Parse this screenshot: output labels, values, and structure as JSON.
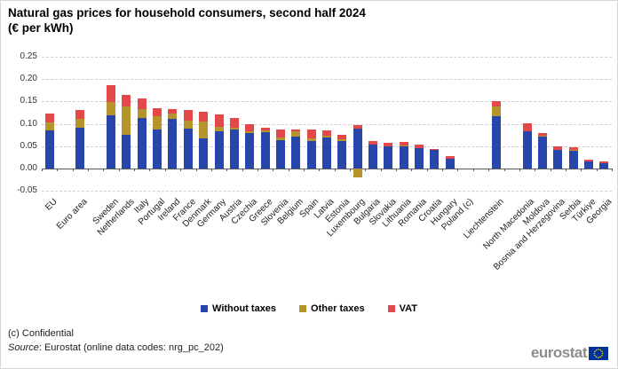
{
  "title": {
    "line1": "Natural gas prices for household consumers, second half 2024",
    "line2": "(€ per kWh)"
  },
  "legend": [
    {
      "label": "Without taxes",
      "color_key": "without_taxes"
    },
    {
      "label": "Other taxes",
      "color_key": "other_taxes"
    },
    {
      "label": "VAT",
      "color_key": "vat"
    }
  ],
  "colors": {
    "without_taxes": "#2846AA",
    "other_taxes": "#B6942C",
    "vat": "#E3484A",
    "grid": "#cfcfcf",
    "axis": "#5a5a5a",
    "logo_blue": "#003399",
    "logo_star": "#FFCC00"
  },
  "footer": {
    "confidential": "(c) Confidential",
    "source_italic": "Source",
    "source_text": ": Eurostat (online data codes: nrg_pc_202)"
  },
  "logo": {
    "text": "eurostat"
  },
  "chart_data": {
    "type": "bar",
    "stacked": true,
    "title": "Natural gas prices for household consumers, second half 2024 (€ per kWh)",
    "xlabel": "",
    "ylabel": "€ per kWh",
    "ylim": [
      -0.05,
      0.25
    ],
    "ytick_step": 0.05,
    "grid": "horizontal-dashed",
    "legend_position": "bottom",
    "series_names": [
      "Without taxes",
      "Other taxes",
      "VAT"
    ],
    "note": "values are stacked segment sizes in € per kWh; null = no data shown (confidential)",
    "entries": [
      {
        "label": "EU",
        "without_taxes": 0.085,
        "other_taxes": 0.018,
        "vat": 0.019,
        "gap_after": true
      },
      {
        "label": "Euro area",
        "without_taxes": 0.091,
        "other_taxes": 0.02,
        "vat": 0.019,
        "gap_after": true
      },
      {
        "label": "Sweden",
        "without_taxes": 0.118,
        "other_taxes": 0.03,
        "vat": 0.039
      },
      {
        "label": "Netherlands",
        "without_taxes": 0.075,
        "other_taxes": 0.063,
        "vat": 0.026
      },
      {
        "label": "Italy",
        "without_taxes": 0.112,
        "other_taxes": 0.02,
        "vat": 0.025
      },
      {
        "label": "Portugal",
        "without_taxes": 0.088,
        "other_taxes": 0.028,
        "vat": 0.018
      },
      {
        "label": "Ireland",
        "without_taxes": 0.11,
        "other_taxes": 0.012,
        "vat": 0.01
      },
      {
        "label": "France",
        "without_taxes": 0.089,
        "other_taxes": 0.018,
        "vat": 0.023
      },
      {
        "label": "Denmark",
        "without_taxes": 0.068,
        "other_taxes": 0.036,
        "vat": 0.022
      },
      {
        "label": "Germany",
        "without_taxes": 0.083,
        "other_taxes": 0.011,
        "vat": 0.026
      },
      {
        "label": "Austria",
        "without_taxes": 0.088,
        "other_taxes": 0.003,
        "vat": 0.021
      },
      {
        "label": "Czechia",
        "without_taxes": 0.08,
        "other_taxes": 0.003,
        "vat": 0.017
      },
      {
        "label": "Greece",
        "without_taxes": 0.082,
        "other_taxes": 0.004,
        "vat": 0.005
      },
      {
        "label": "Slovenia",
        "without_taxes": 0.063,
        "other_taxes": 0.006,
        "vat": 0.018
      },
      {
        "label": "Belgium",
        "without_taxes": 0.071,
        "other_taxes": 0.013,
        "vat": 0.004
      },
      {
        "label": "Spain",
        "without_taxes": 0.062,
        "other_taxes": 0.005,
        "vat": 0.021
      },
      {
        "label": "Latvia",
        "without_taxes": 0.07,
        "other_taxes": 0.004,
        "vat": 0.011
      },
      {
        "label": "Estonia",
        "without_taxes": 0.061,
        "other_taxes": 0.004,
        "vat": 0.01
      },
      {
        "label": "Luxembourg",
        "without_taxes": 0.089,
        "other_taxes": -0.021,
        "vat": 0.008
      },
      {
        "label": "Bulgaria",
        "without_taxes": 0.053,
        "other_taxes": 0,
        "vat": 0.008
      },
      {
        "label": "Slovakia",
        "without_taxes": 0.05,
        "other_taxes": 0,
        "vat": 0.007
      },
      {
        "label": "Lithuania",
        "without_taxes": 0.049,
        "other_taxes": 0.003,
        "vat": 0.007
      },
      {
        "label": "Romania",
        "without_taxes": 0.046,
        "other_taxes": 0,
        "vat": 0.007
      },
      {
        "label": "Croatia",
        "without_taxes": 0.041,
        "other_taxes": 0,
        "vat": 0.003
      },
      {
        "label": "Hungary",
        "without_taxes": 0.022,
        "other_taxes": 0,
        "vat": 0.006
      },
      {
        "label": "Poland (c)",
        "without_taxes": null,
        "other_taxes": null,
        "vat": null,
        "gap_after": true
      },
      {
        "label": "Liechtenstein",
        "without_taxes": 0.116,
        "other_taxes": 0.023,
        "vat": 0.012,
        "gap_after": true
      },
      {
        "label": "North Macedonia",
        "without_taxes": 0.084,
        "other_taxes": 0,
        "vat": 0.017
      },
      {
        "label": "Moldova",
        "without_taxes": 0.072,
        "other_taxes": 0.002,
        "vat": 0.006
      },
      {
        "label": "Bosnia and Herzegovina",
        "without_taxes": 0.041,
        "other_taxes": 0,
        "vat": 0.008
      },
      {
        "label": "Serbia",
        "without_taxes": 0.04,
        "other_taxes": 0.002,
        "vat": 0.005
      },
      {
        "label": "Türkiye",
        "without_taxes": 0.015,
        "other_taxes": 0,
        "vat": 0.004
      },
      {
        "label": "Georgia",
        "without_taxes": 0.012,
        "other_taxes": 0,
        "vat": 0.003
      }
    ]
  }
}
